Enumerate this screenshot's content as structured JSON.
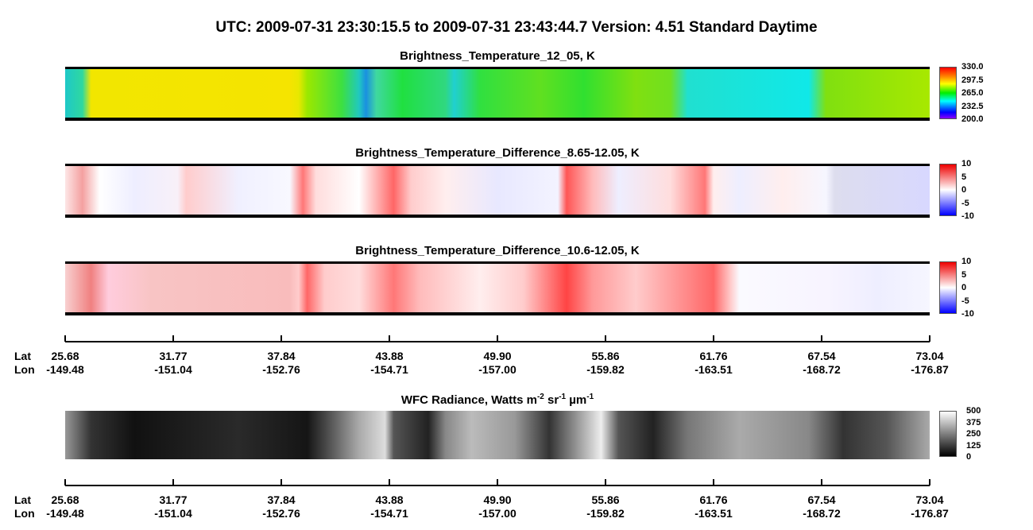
{
  "header": {
    "title": "UTC:  2009-07-31   23:30:15.5  to  2009-07-31   23:43:44.7    Version: 4.51  Standard Daytime"
  },
  "panels": [
    {
      "title": "Brightness_Temperature_12_05, K",
      "colorbar": [
        "330.0",
        "297.5",
        "265.0",
        "232.5",
        "200.0"
      ]
    },
    {
      "title": "Brightness_Temperature_Difference_8.65-12.05, K",
      "colorbar": [
        "10",
        "5",
        "0",
        "-5",
        "-10"
      ]
    },
    {
      "title": "Brightness_Temperature_Difference_10.6-12.05, K",
      "colorbar": [
        "10",
        "5",
        "0",
        "-5",
        "-10"
      ]
    }
  ],
  "axes": [
    {
      "lat_label": "Lat",
      "lon_label": "Lon",
      "lat": [
        "25.68",
        "31.77",
        "37.84",
        "43.88",
        "49.90",
        "55.86",
        "61.76",
        "67.54",
        "73.04"
      ],
      "lon": [
        "-149.48",
        "-151.04",
        "-152.76",
        "-154.71",
        "-157.00",
        "-159.82",
        "-163.51",
        "-168.72",
        "-176.87"
      ]
    },
    {
      "lat_label": "Lat",
      "lon_label": "Lon",
      "lat": [
        "25.68",
        "31.77",
        "37.84",
        "43.88",
        "49.90",
        "55.86",
        "61.76",
        "67.54",
        "73.04"
      ],
      "lon": [
        "-149.48",
        "-151.04",
        "-152.76",
        "-154.71",
        "-157.00",
        "-159.82",
        "-163.51",
        "-168.72",
        "-176.87"
      ]
    }
  ],
  "wfc": {
    "title": [
      {
        "text": "WFC Radiance, Watts m"
      },
      {
        "text": "-2",
        "sup": true
      },
      {
        "text": " sr"
      },
      {
        "text": "-1",
        "sup": true
      },
      {
        "text": " µm"
      },
      {
        "text": "-1",
        "sup": true
      }
    ],
    "colorbar": [
      "500",
      "375",
      "250",
      "125",
      "0"
    ]
  }
}
